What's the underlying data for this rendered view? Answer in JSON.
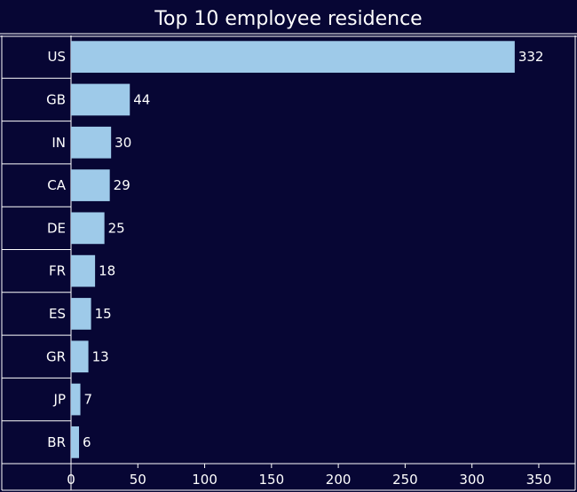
{
  "chart_data": {
    "type": "bar",
    "orientation": "horizontal",
    "title": "Top 10 employee residence",
    "categories": [
      "US",
      "GB",
      "IN",
      "CA",
      "DE",
      "FR",
      "ES",
      "GR",
      "JP",
      "BR"
    ],
    "values": [
      332,
      44,
      30,
      29,
      25,
      18,
      15,
      13,
      7,
      6
    ],
    "xlim": [
      0,
      360
    ],
    "xticks": [
      0,
      50,
      100,
      150,
      200,
      250,
      300,
      350
    ],
    "xlabel": "",
    "ylabel": "",
    "grid": false,
    "legend": "none",
    "colors": {
      "background": "#070634",
      "bar": "#9ecae9",
      "text": "#ffffff",
      "lines": "#ffffff"
    }
  }
}
